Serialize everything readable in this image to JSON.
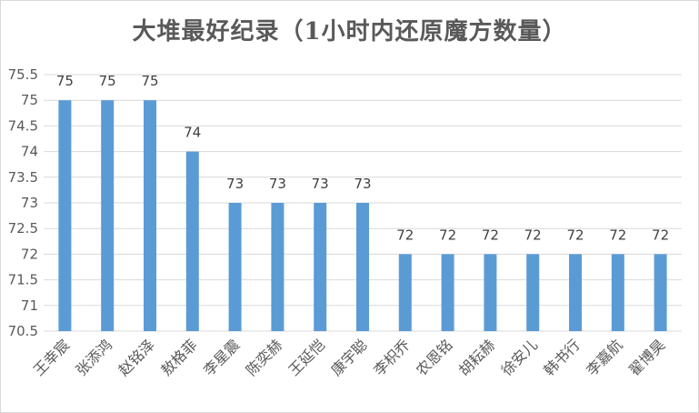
{
  "chart_data": {
    "type": "bar",
    "title": "大堆最好纪录（1小时内还原魔方数量）",
    "categories": [
      "王幸宸",
      "张添鸿",
      "赵铭泽",
      "敖格菲",
      "李星震",
      "陈奕赫",
      "王延恺",
      "康宇聪",
      "李枳乔",
      "农恩铭",
      "胡耘赫",
      "徐安儿",
      "韩书行",
      "李嘉航",
      "翟博昊"
    ],
    "values": [
      75,
      75,
      75,
      74,
      73,
      73,
      73,
      73,
      72,
      72,
      72,
      72,
      72,
      72,
      72
    ],
    "ylim": [
      70.5,
      75.5
    ],
    "yticks": [
      "70.5",
      "71",
      "71.5",
      "72",
      "72.5",
      "73",
      "73.5",
      "74",
      "74.5",
      "75",
      "75.5"
    ],
    "grid": true,
    "bar_color": "#5b9bd5",
    "grid_color": "#d9d9d9",
    "text_color": "#595959"
  }
}
